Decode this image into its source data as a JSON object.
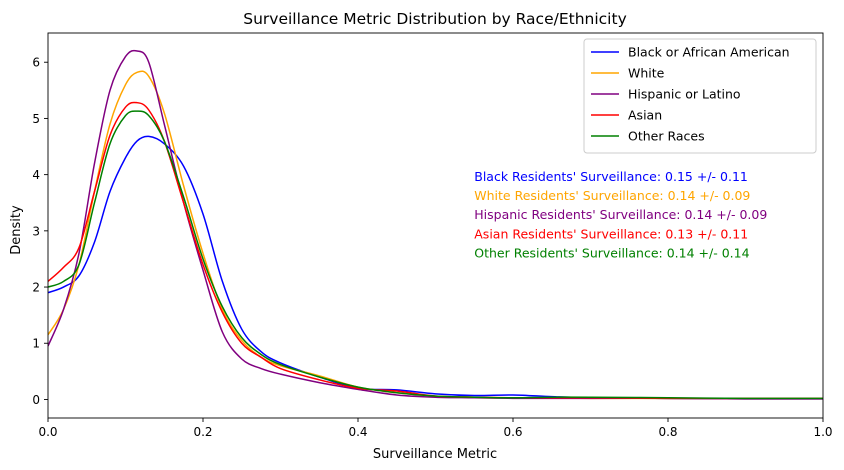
{
  "chart_data": {
    "type": "line",
    "title": "Surveillance Metric Distribution by Race/Ethnicity",
    "xlabel": "Surveillance Metric",
    "ylabel": "Density",
    "xlim": [
      0,
      1
    ],
    "ylim": [
      -0.33,
      6.52
    ],
    "xticks": [
      0,
      0.2,
      0.4,
      0.6,
      0.8,
      1
    ],
    "xtick_labels": [
      "0.0",
      "0.2",
      "0.4",
      "0.6",
      "0.8",
      "1.0"
    ],
    "yticks": [
      0,
      1,
      2,
      3,
      4,
      5,
      6
    ],
    "ytick_labels": [
      "0",
      "1",
      "2",
      "3",
      "4",
      "5",
      "6"
    ],
    "grid": false,
    "legend_position": "top-right",
    "x": [
      0,
      0.02,
      0.04,
      0.06,
      0.08,
      0.1,
      0.115,
      0.13,
      0.15,
      0.175,
      0.2,
      0.225,
      0.25,
      0.275,
      0.3,
      0.35,
      0.4,
      0.45,
      0.5,
      0.55,
      0.6,
      0.65,
      0.7,
      0.8,
      0.9,
      1.0
    ],
    "series": [
      {
        "name": "Black or African American",
        "color": "#0000ff",
        "values": [
          1.9,
          2.0,
          2.2,
          2.8,
          3.7,
          4.3,
          4.6,
          4.68,
          4.55,
          4.15,
          3.3,
          2.1,
          1.25,
          0.85,
          0.65,
          0.4,
          0.2,
          0.17,
          0.1,
          0.07,
          0.08,
          0.05,
          0.03,
          0.02,
          0.01,
          0.01
        ]
      },
      {
        "name": "White",
        "color": "#ffa500",
        "values": [
          1.15,
          1.6,
          2.4,
          3.7,
          4.9,
          5.6,
          5.82,
          5.75,
          5.1,
          3.8,
          2.6,
          1.6,
          1.05,
          0.75,
          0.6,
          0.42,
          0.22,
          0.12,
          0.06,
          0.04,
          0.03,
          0.03,
          0.02,
          0.02,
          0.02,
          0.02
        ]
      },
      {
        "name": "Hispanic or Latino",
        "color": "#800080",
        "values": [
          0.95,
          1.6,
          2.6,
          4.2,
          5.5,
          6.1,
          6.2,
          6.0,
          4.9,
          3.5,
          2.3,
          1.2,
          0.72,
          0.55,
          0.45,
          0.3,
          0.18,
          0.08,
          0.04,
          0.03,
          0.02,
          0.02,
          0.02,
          0.02,
          0.01,
          0.01
        ]
      },
      {
        "name": "Asian",
        "color": "#ff0000",
        "values": [
          2.1,
          2.35,
          2.7,
          3.7,
          4.7,
          5.2,
          5.28,
          5.15,
          4.6,
          3.5,
          2.4,
          1.55,
          1.0,
          0.75,
          0.55,
          0.35,
          0.2,
          0.15,
          0.06,
          0.04,
          0.03,
          0.03,
          0.03,
          0.02,
          0.02,
          0.02
        ]
      },
      {
        "name": "Other Races",
        "color": "#008000",
        "values": [
          2.0,
          2.1,
          2.4,
          3.5,
          4.55,
          5.05,
          5.13,
          5.05,
          4.6,
          3.6,
          2.5,
          1.65,
          1.1,
          0.8,
          0.62,
          0.4,
          0.22,
          0.12,
          0.06,
          0.04,
          0.03,
          0.04,
          0.04,
          0.03,
          0.02,
          0.02
        ]
      }
    ],
    "annotations": [
      {
        "text": "Black Residents' Surveillance: 0.15 +/- 0.11",
        "color": "#0000ff",
        "x": 0.55,
        "y": 3.95
      },
      {
        "text": "White Residents' Surveillance: 0.14 +/- 0.09",
        "color": "#ffa500",
        "x": 0.55,
        "y": 3.61
      },
      {
        "text": "Hispanic Residents' Surveillance: 0.14 +/- 0.09",
        "color": "#800080",
        "x": 0.55,
        "y": 3.27
      },
      {
        "text": "Asian Residents' Surveillance: 0.13 +/- 0.11",
        "color": "#ff0000",
        "x": 0.55,
        "y": 2.93
      },
      {
        "text": "Other Residents' Surveillance: 0.14 +/- 0.14",
        "color": "#008000",
        "x": 0.55,
        "y": 2.59
      }
    ]
  }
}
